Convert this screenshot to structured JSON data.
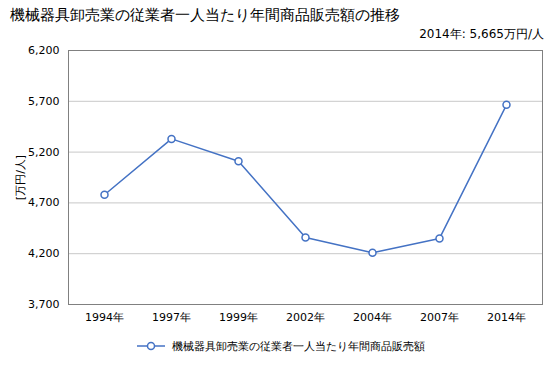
{
  "chart_data": {
    "type": "line",
    "title": "機械器具卸売業の従業者一人当たり年間商品販売額の推移",
    "ylabel": "[万円/人]",
    "annotation": "2014年: 5,665万円/人",
    "categories": [
      "1994年",
      "1997年",
      "1999年",
      "2002年",
      "2004年",
      "2007年",
      "2014年"
    ],
    "series": [
      {
        "name": "機械器具卸売業の従業者一人当たり年間商品販売額",
        "color": "#4472c4",
        "marker": "circle",
        "values": [
          4780,
          5330,
          5110,
          4360,
          4210,
          4350,
          5665
        ]
      }
    ],
    "ylim": [
      3700,
      6200
    ],
    "yticks": [
      {
        "value": 3700,
        "label": "3,700"
      },
      {
        "value": 4200,
        "label": "4,200"
      },
      {
        "value": 4700,
        "label": "4,700"
      },
      {
        "value": 5200,
        "label": "5,200"
      },
      {
        "value": 5700,
        "label": "5,700"
      },
      {
        "value": 6200,
        "label": "6,200"
      }
    ],
    "grid": true,
    "legend": "bottom"
  }
}
